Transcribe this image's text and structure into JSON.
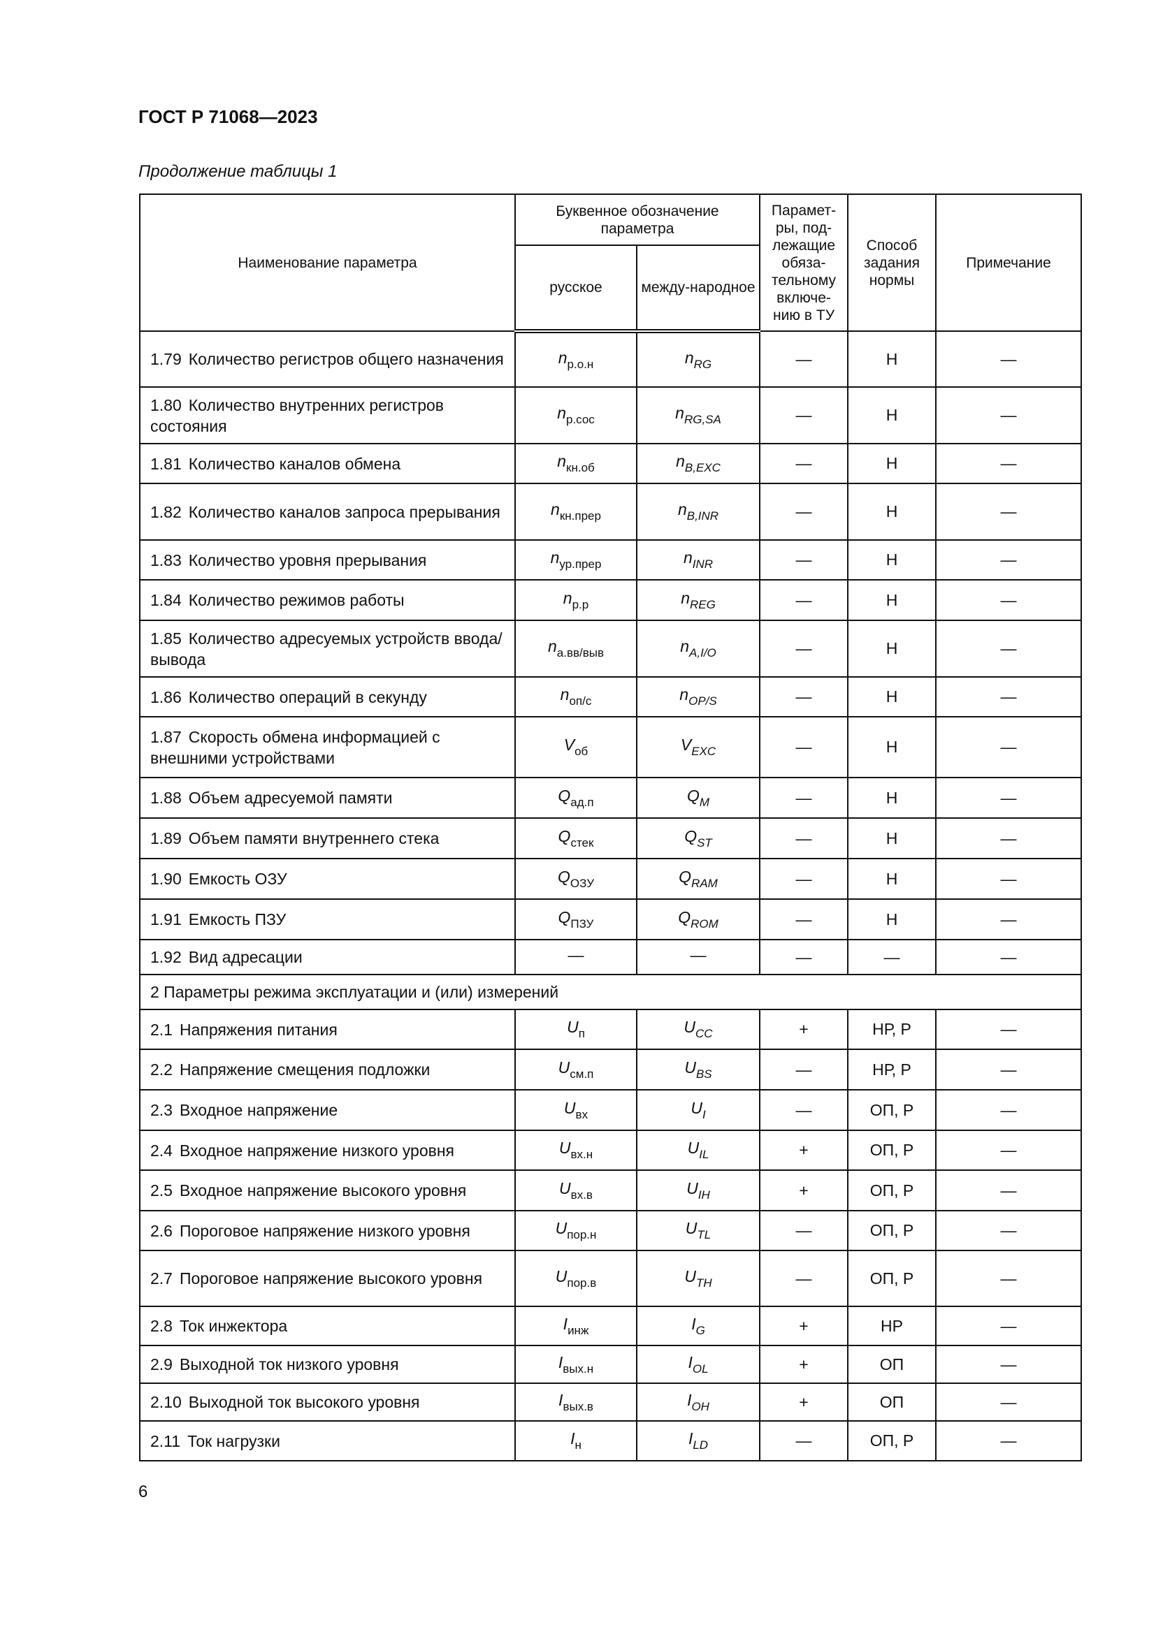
{
  "header": {
    "doc_title": "ГОСТ Р 71068—2023",
    "caption": "Продолжение таблицы 1"
  },
  "columns": {
    "name": "Наименование параметра",
    "letter": "Буквенное обозначение параметра",
    "ru": "русское",
    "intl": "между-народное",
    "required": "Парамет-ры, под-лежащие обяза-тельному включе-нию в ТУ",
    "method": "Способ задания нормы",
    "note": "Примечание"
  },
  "rows": [
    {
      "num": "1.79",
      "name": "Количество регистров общего назначения",
      "ru_sym": "n",
      "ru_sub": "р.о.н",
      "in_sym": "n",
      "in_sub": "RG",
      "req": "—",
      "method": "Н",
      "note": "—"
    },
    {
      "num": "1.80",
      "name": "Количество внутренних регистров состояния",
      "ru_sym": "n",
      "ru_sub": "р.сос",
      "in_sym": "n",
      "in_sub": "RG,SA",
      "req": "—",
      "method": "Н",
      "note": "—"
    },
    {
      "num": "1.81",
      "name": "Количество каналов обмена",
      "ru_sym": "n",
      "ru_sub": "кн.об",
      "in_sym": "n",
      "in_sub": "B,EXC",
      "req": "—",
      "method": "Н",
      "note": "—"
    },
    {
      "num": "1.82",
      "name": "Количество каналов запроса прерывания",
      "ru_sym": "n",
      "ru_sub": "кн.прер",
      "in_sym": "n",
      "in_sub": "B,INR",
      "req": "—",
      "method": "Н",
      "note": "—"
    },
    {
      "num": "1.83",
      "name": "Количество уровня прерывания",
      "ru_sym": "n",
      "ru_sub": "ур.прер",
      "in_sym": "n",
      "in_sub": "INR",
      "req": "—",
      "method": "Н",
      "note": "—"
    },
    {
      "num": "1.84",
      "name": "Количество режимов работы",
      "ru_sym": "n",
      "ru_sub": "р.р",
      "in_sym": "n",
      "in_sub": "REG",
      "req": "—",
      "method": "Н",
      "note": "—"
    },
    {
      "num": "1.85",
      "name": "Количество адресуемых устройств ввода/вывода",
      "ru_sym": "n",
      "ru_sub": "а.вв/выв",
      "in_sym": "n",
      "in_sub": "A,I/O",
      "req": "—",
      "method": "Н",
      "note": "—"
    },
    {
      "num": "1.86",
      "name": "Количество операций в секунду",
      "ru_sym": "n",
      "ru_sub": "оп/с",
      "in_sym": "n",
      "in_sub": "OP/S",
      "req": "—",
      "method": "Н",
      "note": "—"
    },
    {
      "num": "1.87",
      "name": "Скорость обмена информацией с внешними устройствами",
      "ru_sym": "V",
      "ru_sub": "об",
      "in_sym": "V",
      "in_sub": "EXC",
      "req": "—",
      "method": "Н",
      "note": "—"
    },
    {
      "num": "1.88",
      "name": "Объем адресуемой памяти",
      "ru_sym": "Q",
      "ru_sub": "ад.п",
      "in_sym": "Q",
      "in_sub": "M",
      "req": "—",
      "method": "Н",
      "note": "—"
    },
    {
      "num": "1.89",
      "name": "Объем памяти внутреннего стека",
      "ru_sym": "Q",
      "ru_sub": "стек",
      "in_sym": "Q",
      "in_sub": "ST",
      "req": "—",
      "method": "Н",
      "note": "—"
    },
    {
      "num": "1.90",
      "name": "Емкость ОЗУ",
      "ru_sym": "Q",
      "ru_sub": "ОЗУ",
      "in_sym": "Q",
      "in_sub": "RAM",
      "req": "—",
      "method": "Н",
      "note": "—"
    },
    {
      "num": "1.91",
      "name": "Емкость ПЗУ",
      "ru_sym": "Q",
      "ru_sub": "ПЗУ",
      "in_sym": "Q",
      "in_sub": "ROM",
      "req": "—",
      "method": "Н",
      "note": "—"
    },
    {
      "num": "1.92",
      "name": "Вид адресации",
      "ru_sym": "—",
      "ru_sub": "",
      "in_sym": "—",
      "in_sub": "",
      "req": "—",
      "method": "—",
      "note": "—"
    },
    {
      "section": "2 Параметры режима эксплуатации и (или) измерений"
    },
    {
      "num": "2.1",
      "name": "Напряжения питания",
      "ru_sym": "U",
      "ru_sub": "п",
      "in_sym": "U",
      "in_sub": "CC",
      "req": "+",
      "method": "НР, Р",
      "note": "—"
    },
    {
      "num": "2.2",
      "name": "Напряжение смещения подложки",
      "ru_sym": "U",
      "ru_sub": "см.п",
      "in_sym": "U",
      "in_sub": "BS",
      "req": "—",
      "method": "НР, Р",
      "note": "—"
    },
    {
      "num": "2.3",
      "name": "Входное напряжение",
      "ru_sym": "U",
      "ru_sub": "вх",
      "in_sym": "U",
      "in_sub": "I",
      "req": "—",
      "method": "ОП, Р",
      "note": "—"
    },
    {
      "num": "2.4",
      "name": "Входное напряжение низкого уровня",
      "ru_sym": "U",
      "ru_sub": "вх.н",
      "in_sym": "U",
      "in_sub": "IL",
      "req": "+",
      "method": "ОП, Р",
      "note": "—"
    },
    {
      "num": "2.5",
      "name": "Входное напряжение высокого уровня",
      "ru_sym": "U",
      "ru_sub": "вх.в",
      "in_sym": "U",
      "in_sub": "IH",
      "req": "+",
      "method": "ОП, Р",
      "note": "—"
    },
    {
      "num": "2.6",
      "name": "Пороговое напряжение низкого уровня",
      "ru_sym": "U",
      "ru_sub": "пор.н",
      "in_sym": "U",
      "in_sub": "TL",
      "req": "—",
      "method": "ОП, Р",
      "note": "—"
    },
    {
      "num": "2.7",
      "name": "Пороговое напряжение высокого уровня",
      "ru_sym": "U",
      "ru_sub": "пор.в",
      "in_sym": "U",
      "in_sub": "TH",
      "req": "—",
      "method": "ОП, Р",
      "note": "—"
    },
    {
      "num": "2.8",
      "name": "Ток инжектора",
      "ru_sym": "I",
      "ru_sub": "инж",
      "in_sym": "I",
      "in_sub": "G",
      "req": "+",
      "method": "НР",
      "note": "—"
    },
    {
      "num": "2.9",
      "name": "Выходной ток низкого уровня",
      "ru_sym": "I",
      "ru_sub": "вых.н",
      "in_sym": "I",
      "in_sub": "OL",
      "req": "+",
      "method": "ОП",
      "note": "—"
    },
    {
      "num": "2.10",
      "name": "Выходной ток высокого уровня",
      "ru_sym": "I",
      "ru_sub": "вых.в",
      "in_sym": "I",
      "in_sub": "OH",
      "req": "+",
      "method": "ОП",
      "note": "—"
    },
    {
      "num": "2.11",
      "name": "Ток нагрузки",
      "ru_sym": "I",
      "ru_sub": "н",
      "in_sym": "I",
      "in_sub": "LD",
      "req": "—",
      "method": "ОП, Р",
      "note": "—"
    }
  ],
  "footer": {
    "page_number": "6"
  }
}
